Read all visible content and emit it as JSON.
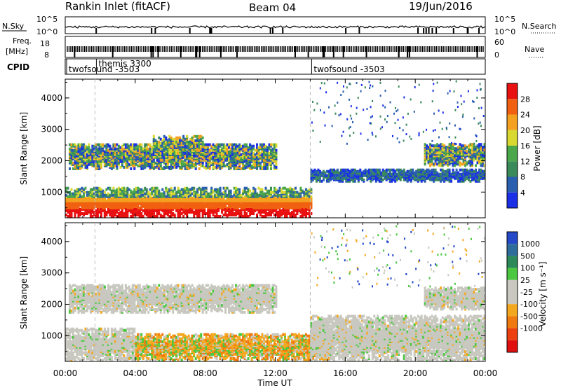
{
  "header": {
    "station": "Rankin Inlet (fitACF)",
    "beam": "Beam 04",
    "date": "19/Jun/2016"
  },
  "strips": {
    "nsky_label": "N.Sky",
    "nsearch_label": "N.Search",
    "freq_label_1": "Freq.",
    "freq_label_2": "[MHz]",
    "nave_label": "Nave",
    "cpid_label": "CPID",
    "nsky_ticks": [
      "10^5",
      "10^0"
    ],
    "nsearch_ticks": [
      "10^5",
      "10^0"
    ],
    "freq_ticks": [
      "18",
      "8"
    ],
    "nave_ticks": [
      "60",
      "0"
    ]
  },
  "cpid": [
    {
      "name": "twofsound -3503",
      "start_hour": 0.0
    },
    {
      "name": "themis 3300",
      "start_hour": 1.7
    },
    {
      "name": "twofsound -3503",
      "start_hour": 14.0
    }
  ],
  "colors": {
    "power_scale": [
      "#1a2fe6",
      "#2a5fb0",
      "#3b8a5a",
      "#4aa84a",
      "#d8d830",
      "#f4a020",
      "#f06010",
      "#e81010"
    ],
    "velocity_scale": [
      "#2448c8",
      "#2e6c9c",
      "#2c8a5a",
      "#4bc840",
      "#c8c8c0",
      "#c8c8c0",
      "#f4a820",
      "#f07a10",
      "#ec4010",
      "#e01010"
    ]
  },
  "chart_data": [
    {
      "type": "heatmap",
      "panel": "power",
      "xlabel": "Time UT",
      "ylabel": "Slant Range [km]",
      "colorbar_label": "Power [dB]",
      "colorbar_ticks": [
        "4",
        "8",
        "12",
        "16",
        "20",
        "24",
        "28"
      ],
      "x_ticks": [
        "00:00",
        "04:00",
        "08:00",
        "12:00",
        "16:00",
        "20:00",
        "00:00"
      ],
      "y_ticks": [
        "1000",
        "2000",
        "3000",
        "4000"
      ],
      "xlim": [
        0,
        24
      ],
      "ylim": [
        180,
        4600
      ],
      "echo_regions": [
        {
          "start": 0.0,
          "end": 14.0,
          "rmin": 180,
          "rmax": 1100,
          "level": "strong"
        },
        {
          "start": 0.2,
          "end": 12.0,
          "rmin": 1700,
          "rmax": 2500,
          "level": "medium"
        },
        {
          "start": 5.0,
          "end": 7.8,
          "rmin": 2100,
          "rmax": 2750,
          "level": "medium"
        },
        {
          "start": 14.0,
          "end": 24.0,
          "rmin": 1300,
          "rmax": 1700,
          "level": "weak"
        },
        {
          "start": 20.5,
          "end": 24.0,
          "rmin": 1800,
          "rmax": 2500,
          "level": "medium"
        }
      ]
    },
    {
      "type": "heatmap",
      "panel": "velocity",
      "xlabel": "Time UT",
      "ylabel": "Slant Range [km]",
      "colorbar_label": "Velocity [m s⁻¹]",
      "colorbar_ticks": [
        "1000",
        "500",
        "100",
        "25",
        "-25",
        "-100",
        "-500",
        "-1000"
      ],
      "x_ticks": [
        "00:00",
        "04:00",
        "08:00",
        "12:00",
        "16:00",
        "20:00",
        "00:00"
      ],
      "y_ticks": [
        "1000",
        "2000",
        "3000",
        "4000"
      ],
      "xlim": [
        0,
        24
      ],
      "ylim": [
        180,
        4600
      ],
      "echo_regions": [
        {
          "start": 0.0,
          "end": 4.0,
          "rmin": 180,
          "rmax": 1200,
          "level": "ground"
        },
        {
          "start": 4.0,
          "end": 15.0,
          "rmin": 180,
          "rmax": 1000,
          "level": "negative"
        },
        {
          "start": 0.2,
          "end": 12.0,
          "rmin": 1700,
          "rmax": 2600,
          "level": "ground"
        },
        {
          "start": 14.0,
          "end": 24.0,
          "rmin": 180,
          "rmax": 1600,
          "level": "ground"
        },
        {
          "start": 20.5,
          "end": 24.0,
          "rmin": 1800,
          "rmax": 2500,
          "level": "ground"
        }
      ]
    }
  ]
}
